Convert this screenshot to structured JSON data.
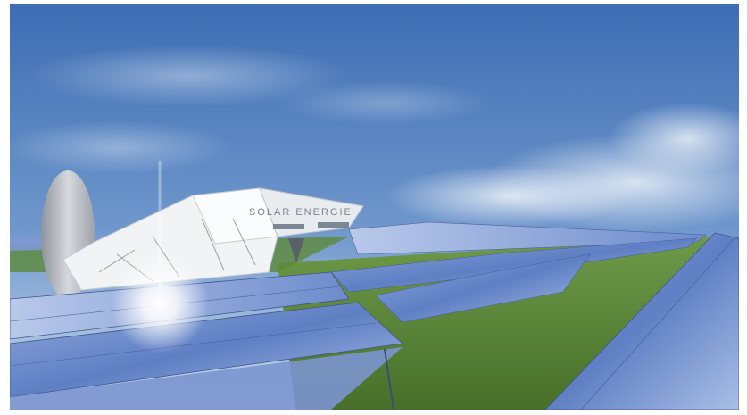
{
  "scene": {
    "building_sign": "SOLAR ENERGIE",
    "colors": {
      "sky_top": "#3f6fb5",
      "sky_bottom": "#c9dbee",
      "grass": "#5c8a3a",
      "panel": "#6f8fcf",
      "building": "#f2f4f6"
    }
  }
}
